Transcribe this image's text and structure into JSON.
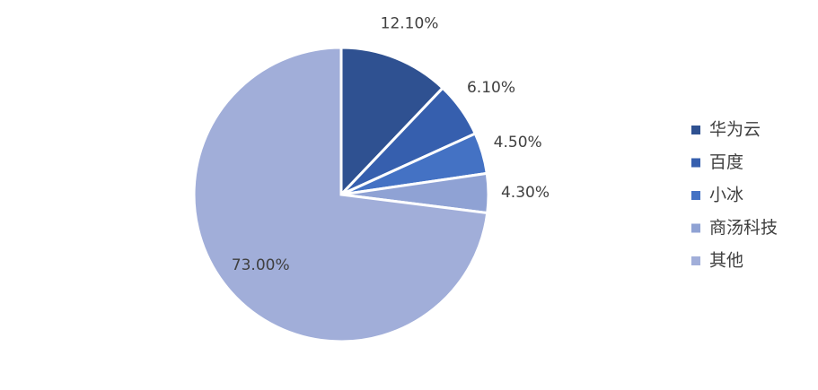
{
  "chart_data": {
    "type": "pie",
    "categories": [
      "华为云",
      "百度",
      "小冰",
      "商汤科技",
      "其他"
    ],
    "values": [
      12.1,
      6.1,
      4.5,
      4.3,
      73.0
    ],
    "value_labels": [
      "12.10%",
      "6.10%",
      "4.50%",
      "4.30%",
      "73.00%"
    ],
    "colors": [
      "#2f5191",
      "#365fae",
      "#4472c4",
      "#8fa2d4",
      "#a1aed9"
    ],
    "legend": "right"
  }
}
